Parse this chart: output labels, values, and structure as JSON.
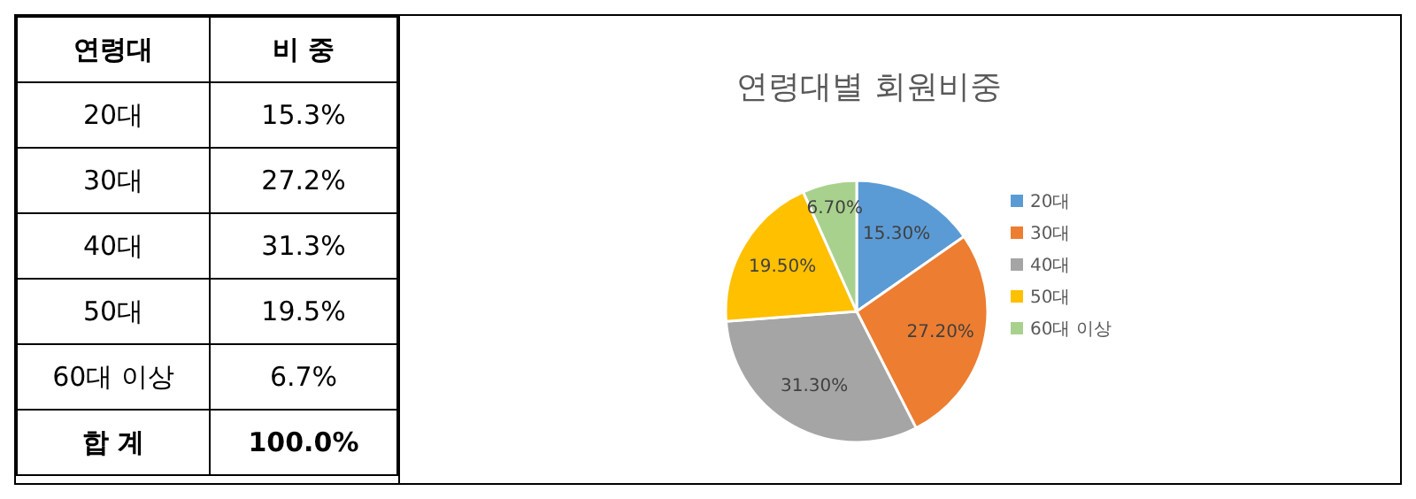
{
  "chart_data": {
    "type": "pie",
    "title": "연령대별 회원비중",
    "categories": [
      "20대",
      "30대",
      "40대",
      "50대",
      "60대 이상"
    ],
    "values": [
      15.3,
      27.2,
      31.3,
      19.5,
      6.7
    ],
    "colors": [
      "#5b9bd5",
      "#ed7d31",
      "#a5a5a5",
      "#ffc000",
      "#a9d18e"
    ],
    "value_labels": [
      "15.30%",
      "27.20%",
      "31.30%",
      "19.50%",
      "6.70%"
    ],
    "legend": "right",
    "annotations": [
      "연령대",
      "비 중",
      "15.3%",
      "27.2%",
      "31.3%",
      "19.5%",
      "6.7%",
      "합 계",
      "100.0%"
    ]
  }
}
